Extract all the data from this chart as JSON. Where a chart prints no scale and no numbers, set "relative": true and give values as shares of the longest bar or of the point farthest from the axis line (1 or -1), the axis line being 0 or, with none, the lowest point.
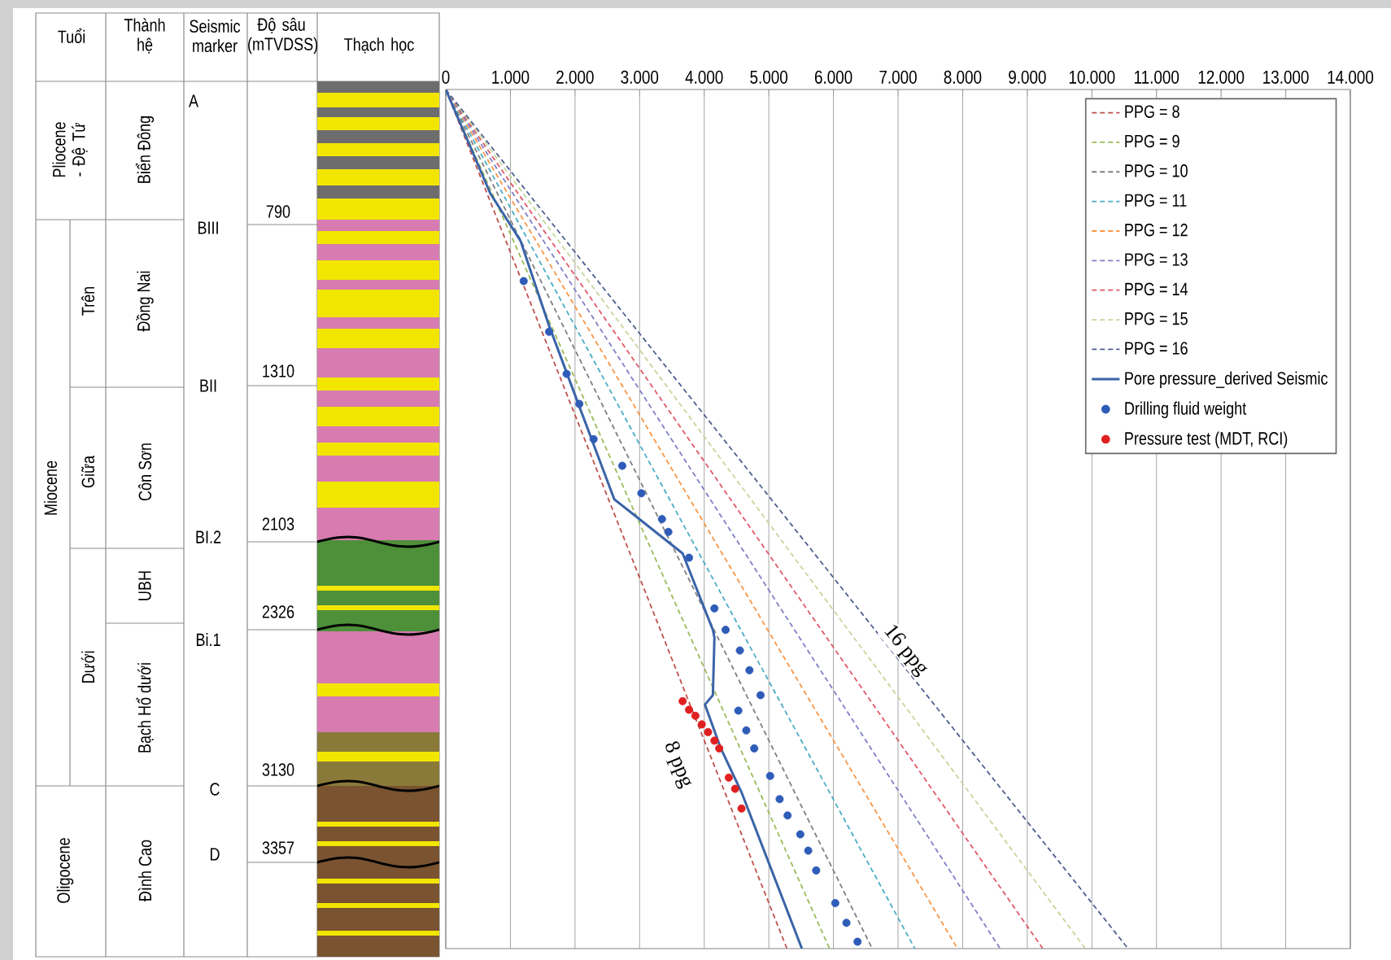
{
  "chart_data": [
    {
      "type": "other",
      "annotations": [
        "Tuổi",
        "Thành hệ",
        "Seismic marker",
        "Độ sâu (mTVDSS)",
        "Thạch học",
        "Pliocene - Đệ Tứ",
        "Miocene",
        "Trên",
        "Giữa",
        "Dưới",
        "Oligocene",
        "Biển Đông",
        "Đồng Nai",
        "Côn Sơn",
        "UBH",
        "Bạch Hổ dưới",
        "Đình Cao",
        "A",
        "BIII",
        "BII",
        "BI.2",
        "Bi.1",
        "C",
        "D",
        "790",
        "1310",
        "2103",
        "2326",
        "3130",
        "3357"
      ]
    },
    {
      "type": "line",
      "relative": true,
      "grid": "x",
      "legend": "top right",
      "xlim": [
        0,
        14000
      ],
      "xticks": [
        0,
        {
          "value": 1000,
          "label": "1.000"
        },
        {
          "value": 2000,
          "label": "2.000"
        },
        {
          "value": 3000,
          "label": "3.000"
        },
        {
          "value": 4000,
          "label": "4.000"
        },
        {
          "value": 5000,
          "label": "5.000"
        },
        {
          "value": 6000,
          "label": "6.000"
        },
        {
          "value": 7000,
          "label": "7.000"
        },
        {
          "value": 8000,
          "label": "8.000"
        },
        {
          "value": 9000,
          "label": "9.000"
        },
        {
          "value": 10000,
          "label": "10.000"
        },
        {
          "value": 11000,
          "label": "11.000"
        },
        {
          "value": 12000,
          "label": "12.000"
        },
        {
          "value": 13000,
          "label": "13.000"
        },
        {
          "value": 14000,
          "label": "14.000"
        }
      ],
      "series": [
        {
          "name": "PPG = 8",
          "color": "#c0504d",
          "line_style": "dashed",
          "x": [
            0,
            5280
          ],
          "values": [
            0,
            -1
          ]
        },
        {
          "name": "PPG = 9",
          "color": "#9bbb59",
          "line_style": "dashed",
          "x": [
            0,
            5940
          ],
          "values": [
            0,
            -1
          ]
        },
        {
          "name": "PPG = 10",
          "color": "#7f7f7f",
          "line_style": "dashed",
          "x": [
            0,
            6600
          ],
          "values": [
            0,
            -1
          ]
        },
        {
          "name": "PPG = 11",
          "color": "#4bacc6",
          "line_style": "dashed",
          "x": [
            0,
            7260
          ],
          "values": [
            0,
            -1
          ]
        },
        {
          "name": "PPG = 12",
          "color": "#f79646",
          "line_style": "dashed",
          "x": [
            0,
            7920
          ],
          "values": [
            0,
            -1
          ]
        },
        {
          "name": "PPG = 13",
          "color": "#8080c8",
          "line_style": "dashed",
          "x": [
            0,
            8580
          ],
          "values": [
            0,
            -1
          ]
        },
        {
          "name": "PPG = 14",
          "color": "#e05a6a",
          "line_style": "dashed",
          "x": [
            0,
            9240
          ],
          "values": [
            0,
            -1
          ]
        },
        {
          "name": "PPG = 15",
          "color": "#c4d79b",
          "line_style": "dashed",
          "x": [
            0,
            9900
          ],
          "values": [
            0,
            -1
          ]
        },
        {
          "name": "PPG = 16",
          "color": "#4f5f8f",
          "line_style": "dashed",
          "x": [
            0,
            10560
          ],
          "values": [
            0,
            -1
          ]
        },
        {
          "name": "Pore pressure_derived Seismic",
          "color": "#3a64a8",
          "line_style": "solid",
          "x": [
            0,
            689,
            1156,
            1599,
            2042,
            2608,
            2928,
            3666,
            4134,
            4158,
            4134,
            4011,
            4257,
            4577,
            5512
          ],
          "values": [
            0,
            -0.121,
            -0.176,
            -0.275,
            -0.364,
            -0.477,
            -0.496,
            -0.54,
            -0.629,
            -0.638,
            -0.705,
            -0.716,
            -0.767,
            -0.818,
            -1.0
          ]
        },
        {
          "name": "Drilling fluid weight",
          "type": "scatter",
          "marker": "circle",
          "color": "#2e5cb8",
          "x": [
            1206,
            1599,
            1870,
            2067,
            2288,
            2731,
            3027,
            3346,
            3445,
            3765,
            4158,
            4331,
            4552,
            4700,
            4872,
            4528,
            4651,
            4774,
            5020,
            5167,
            5290,
            5487,
            5610,
            5733,
            6028,
            6201,
            6373
          ],
          "values": [
            -0.223,
            -0.282,
            -0.331,
            -0.366,
            -0.407,
            -0.438,
            -0.47,
            -0.5,
            -0.515,
            -0.545,
            -0.604,
            -0.629,
            -0.653,
            -0.676,
            -0.705,
            -0.723,
            -0.746,
            -0.767,
            -0.799,
            -0.826,
            -0.845,
            -0.867,
            -0.886,
            -0.909,
            -0.947,
            -0.97,
            -0.992
          ]
        },
        {
          "name": "Pressure test (MDT, RCI)",
          "type": "scatter",
          "marker": "circle",
          "color": "#e02020",
          "x": [
            3666,
            3765,
            3863,
            3962,
            4060,
            4158,
            4232,
            4380,
            4478,
            4577
          ],
          "values": [
            -0.712,
            -0.722,
            -0.729,
            -0.739,
            -0.748,
            -0.758,
            -0.767,
            -0.801,
            -0.814,
            -0.837
          ]
        }
      ],
      "annotations": [
        {
          "text": "16 ppg",
          "x": 7111,
          "y": -0.653
        },
        {
          "text": "8 ppg",
          "x": 3590,
          "y": -0.786
        }
      ]
    }
  ]
}
